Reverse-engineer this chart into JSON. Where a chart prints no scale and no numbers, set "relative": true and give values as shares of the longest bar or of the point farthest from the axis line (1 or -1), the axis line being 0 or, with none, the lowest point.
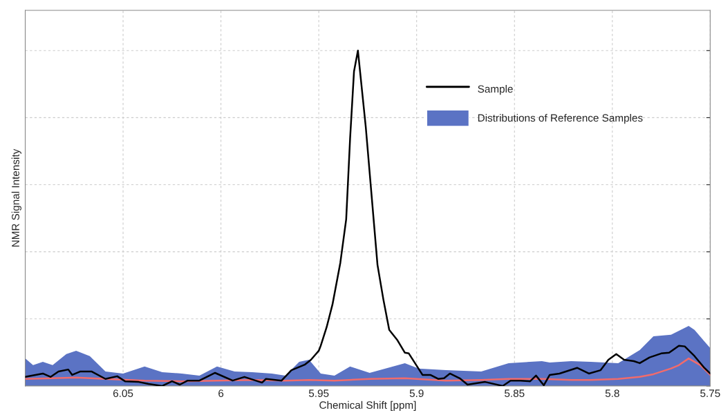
{
  "chart_data": {
    "type": "line",
    "relative": true,
    "xlabel": "Chemical Shift [ppm]",
    "ylabel": "NMR Signal Intensity",
    "xlim": [
      6.1,
      5.75
    ],
    "xticks": [
      6.05,
      6,
      5.95,
      5.9,
      5.85,
      5.8,
      5.75
    ],
    "tick_labels": "x",
    "grid": true,
    "legend": "top right",
    "line_style": "solid",
    "marker": "none",
    "series": [
      {
        "name": "Distributions of Reference Samples",
        "type": "area",
        "color": "#5b73c4",
        "x": [
          6.1,
          6.096,
          6.091,
          6.086,
          6.079,
          6.074,
          6.067,
          6.059,
          6.05,
          6.039,
          6.03,
          6.02,
          6.011,
          6.002,
          5.993,
          5.984,
          5.974,
          5.967,
          5.96,
          5.955,
          5.949,
          5.942,
          5.934,
          5.924,
          5.906,
          5.899,
          5.885,
          5.867,
          5.853,
          5.836,
          5.832,
          5.821,
          5.811,
          5.797,
          5.786,
          5.779,
          5.77,
          5.761,
          5.758,
          5.75
        ],
        "values": [
          0.082,
          0.062,
          0.072,
          0.062,
          0.095,
          0.105,
          0.089,
          0.043,
          0.037,
          0.058,
          0.041,
          0.037,
          0.031,
          0.058,
          0.043,
          0.041,
          0.037,
          0.031,
          0.072,
          0.078,
          0.037,
          0.031,
          0.058,
          0.039,
          0.068,
          0.052,
          0.047,
          0.043,
          0.068,
          0.074,
          0.07,
          0.074,
          0.072,
          0.068,
          0.107,
          0.148,
          0.153,
          0.179,
          0.167,
          0.113
        ]
      },
      {
        "type": "line",
        "color": "#f26b6b",
        "x": [
          6.1,
          6.086,
          6.074,
          6.059,
          6.039,
          6.02,
          6.002,
          5.984,
          5.967,
          5.955,
          5.942,
          5.924,
          5.906,
          5.885,
          5.867,
          5.853,
          5.836,
          5.821,
          5.811,
          5.797,
          5.786,
          5.779,
          5.77,
          5.766,
          5.761,
          5.755,
          5.75
        ],
        "values": [
          0.021,
          0.023,
          0.025,
          0.021,
          0.016,
          0.014,
          0.016,
          0.018,
          0.016,
          0.018,
          0.016,
          0.021,
          0.023,
          0.016,
          0.018,
          0.021,
          0.021,
          0.018,
          0.018,
          0.021,
          0.027,
          0.035,
          0.052,
          0.062,
          0.082,
          0.062,
          0.033
        ]
      },
      {
        "name": "Sample",
        "color": "#000000",
        "x": [
          6.1,
          6.091,
          6.087,
          6.083,
          6.078,
          6.076,
          6.072,
          6.066,
          6.059,
          6.053,
          6.049,
          6.042,
          6.037,
          6.03,
          6.025,
          6.021,
          6.017,
          6.011,
          6.003,
          5.994,
          5.988,
          5.979,
          5.977,
          5.969,
          5.964,
          5.957,
          5.954,
          5.95,
          5.949,
          5.946,
          5.943,
          5.939,
          5.936,
          5.934,
          5.932,
          5.93,
          5.926,
          5.923,
          5.92,
          5.917,
          5.914,
          5.91,
          5.906,
          5.904,
          5.897,
          5.893,
          5.889,
          5.886,
          5.883,
          5.878,
          5.874,
          5.865,
          5.856,
          5.852,
          5.847,
          5.842,
          5.839,
          5.835,
          5.832,
          5.827,
          5.818,
          5.812,
          5.806,
          5.802,
          5.798,
          5.794,
          5.789,
          5.786,
          5.781,
          5.775,
          5.771,
          5.766,
          5.763,
          5.758,
          5.753,
          5.75
        ],
        "values": [
          0.027,
          0.037,
          0.027,
          0.043,
          0.049,
          0.033,
          0.043,
          0.043,
          0.021,
          0.029,
          0.014,
          0.012,
          0.006,
          0.0,
          0.014,
          0.004,
          0.016,
          0.016,
          0.039,
          0.016,
          0.027,
          0.01,
          0.021,
          0.016,
          0.047,
          0.064,
          0.078,
          0.105,
          0.12,
          0.175,
          0.243,
          0.367,
          0.497,
          0.738,
          0.938,
          1.0,
          0.773,
          0.567,
          0.361,
          0.258,
          0.167,
          0.138,
          0.099,
          0.097,
          0.033,
          0.033,
          0.021,
          0.023,
          0.037,
          0.023,
          0.004,
          0.012,
          0.0,
          0.016,
          0.016,
          0.014,
          0.031,
          0.002,
          0.033,
          0.037,
          0.054,
          0.037,
          0.047,
          0.078,
          0.095,
          0.078,
          0.074,
          0.068,
          0.085,
          0.097,
          0.099,
          0.12,
          0.118,
          0.089,
          0.054,
          0.037
        ]
      }
    ]
  }
}
